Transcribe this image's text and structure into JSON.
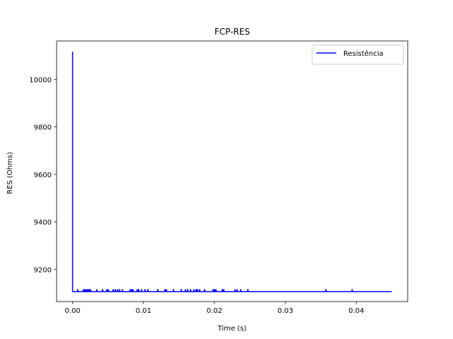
{
  "chart_data": {
    "type": "line",
    "title": "FCP-RES",
    "xlabel": "Time (s)",
    "ylabel": "RES (Ohms)",
    "xlim": [
      -0.00225,
      0.04725
    ],
    "ylim": [
      9064,
      10162
    ],
    "xticks": [
      0.0,
      0.01,
      0.02,
      0.03,
      0.04
    ],
    "xtick_labels": [
      "0.00",
      "0.01",
      "0.02",
      "0.03",
      "0.04"
    ],
    "yticks": [
      9200,
      9400,
      9600,
      9800,
      10000
    ],
    "ytick_labels": [
      "9200",
      "9400",
      "9600",
      "9800",
      "10000"
    ],
    "grid": false,
    "legend_position": "upper right",
    "series": [
      {
        "name": "Resistência",
        "color": "#0000ff",
        "x": [
          0.0,
          0.0,
          0.0001,
          0.0007,
          0.0007,
          0.0008,
          0.0015,
          0.0015,
          0.0016,
          0.0017,
          0.0017,
          0.0018,
          0.0019,
          0.0019,
          0.002,
          0.0021,
          0.0021,
          0.0022,
          0.0023,
          0.0023,
          0.0024,
          0.0025,
          0.0025,
          0.0026,
          0.0034,
          0.0034,
          0.0035,
          0.0042,
          0.0042,
          0.0043,
          0.0048,
          0.0048,
          0.0049,
          0.005,
          0.005,
          0.0051,
          0.0057,
          0.0057,
          0.0058,
          0.006,
          0.006,
          0.0061,
          0.0063,
          0.0063,
          0.0064,
          0.0066,
          0.0066,
          0.0067,
          0.007,
          0.007,
          0.0071,
          0.0081,
          0.0081,
          0.0082,
          0.0083,
          0.0083,
          0.0084,
          0.0085,
          0.0085,
          0.0086,
          0.0091,
          0.0091,
          0.0092,
          0.0093,
          0.0093,
          0.0094,
          0.0097,
          0.0097,
          0.0098,
          0.0102,
          0.0102,
          0.0103,
          0.0106,
          0.0106,
          0.0107,
          0.012,
          0.012,
          0.0121,
          0.013,
          0.013,
          0.0131,
          0.0132,
          0.0132,
          0.0133,
          0.0142,
          0.0142,
          0.0143,
          0.0153,
          0.0153,
          0.0154,
          0.0159,
          0.0159,
          0.016,
          0.0162,
          0.0162,
          0.0163,
          0.0166,
          0.0166,
          0.0167,
          0.0171,
          0.0171,
          0.0172,
          0.0174,
          0.0174,
          0.0175,
          0.0176,
          0.0176,
          0.0177,
          0.0179,
          0.0179,
          0.018,
          0.0186,
          0.0186,
          0.0187,
          0.0198,
          0.0198,
          0.0199,
          0.02,
          0.02,
          0.0201,
          0.0202,
          0.0202,
          0.0203,
          0.0211,
          0.0211,
          0.0212,
          0.0213,
          0.0213,
          0.0214,
          0.0229,
          0.0229,
          0.023,
          0.0232,
          0.0232,
          0.0233,
          0.0237,
          0.0237,
          0.0238,
          0.0247,
          0.0247,
          0.0248,
          0.0357,
          0.0357,
          0.0358,
          0.0394,
          0.0394,
          0.0395,
          0.045
        ],
        "y": [
          10117,
          9106,
          9106,
          9106,
          9115,
          9106,
          9106,
          9115,
          9106,
          9106,
          9115,
          9106,
          9106,
          9115,
          9106,
          9106,
          9115,
          9106,
          9106,
          9115,
          9106,
          9106,
          9115,
          9106,
          9106,
          9115,
          9106,
          9106,
          9115,
          9106,
          9106,
          9115,
          9106,
          9106,
          9115,
          9106,
          9106,
          9115,
          9106,
          9106,
          9115,
          9106,
          9106,
          9115,
          9106,
          9106,
          9115,
          9106,
          9106,
          9115,
          9106,
          9106,
          9115,
          9106,
          9106,
          9115,
          9106,
          9106,
          9115,
          9106,
          9106,
          9115,
          9106,
          9106,
          9115,
          9106,
          9106,
          9115,
          9106,
          9106,
          9115,
          9106,
          9106,
          9115,
          9106,
          9106,
          9115,
          9106,
          9106,
          9115,
          9106,
          9106,
          9115,
          9106,
          9106,
          9115,
          9106,
          9106,
          9115,
          9106,
          9106,
          9115,
          9106,
          9106,
          9115,
          9106,
          9106,
          9115,
          9106,
          9106,
          9115,
          9106,
          9106,
          9115,
          9106,
          9106,
          9115,
          9106,
          9106,
          9115,
          9106,
          9106,
          9115,
          9106,
          9106,
          9115,
          9106,
          9106,
          9115,
          9106,
          9106,
          9115,
          9106,
          9106,
          9115,
          9106,
          9106,
          9115,
          9106,
          9106,
          9115,
          9106,
          9106,
          9115,
          9106,
          9106,
          9115,
          9106,
          9106,
          9115,
          9106,
          9106,
          9115,
          9106,
          9106,
          9115,
          9106,
          9106
        ]
      }
    ]
  }
}
